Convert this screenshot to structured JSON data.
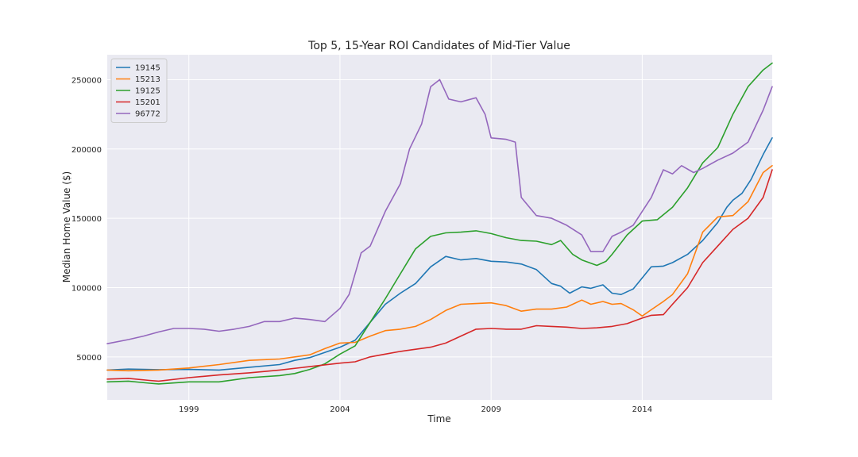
{
  "chart_data": {
    "type": "line",
    "title": "Top 5, 15-Year ROI Candidates of Mid-Tier Value",
    "xlabel": "Time",
    "ylabel": "Median Home Value ($)",
    "xlim": [
      1996.3,
      2018.3
    ],
    "ylim": [
      19000,
      268000
    ],
    "x_ticks": [
      1999,
      2004,
      2009,
      2014
    ],
    "x_tick_labels": [
      "1999",
      "2004",
      "2009",
      "2014"
    ],
    "y_ticks": [
      50000,
      100000,
      150000,
      200000,
      250000
    ],
    "y_tick_labels": [
      "50000",
      "100000",
      "150000",
      "200000",
      "250000"
    ],
    "grid": true,
    "legend_position": "top-left",
    "series": [
      {
        "name": "19145",
        "color": "#1f77b4",
        "points": [
          [
            1996.3,
            40500
          ],
          [
            1997,
            41200
          ],
          [
            1998,
            40800
          ],
          [
            1999,
            41000
          ],
          [
            2000,
            40500
          ],
          [
            2001,
            42500
          ],
          [
            2002,
            44500
          ],
          [
            2002.5,
            47500
          ],
          [
            2003,
            49500
          ],
          [
            2004,
            57000
          ],
          [
            2004.5,
            62000
          ],
          [
            2005,
            75000
          ],
          [
            2005.5,
            88000
          ],
          [
            2006,
            96000
          ],
          [
            2006.5,
            103000
          ],
          [
            2007,
            115000
          ],
          [
            2007.5,
            122500
          ],
          [
            2008,
            120000
          ],
          [
            2008.5,
            121000
          ],
          [
            2009,
            119000
          ],
          [
            2009.5,
            118500
          ],
          [
            2010,
            117000
          ],
          [
            2010.5,
            113000
          ],
          [
            2011,
            103000
          ],
          [
            2011.3,
            101000
          ],
          [
            2011.6,
            96000
          ],
          [
            2012,
            100500
          ],
          [
            2012.3,
            99500
          ],
          [
            2012.7,
            102000
          ],
          [
            2013,
            96000
          ],
          [
            2013.3,
            95000
          ],
          [
            2013.7,
            99000
          ],
          [
            2014,
            107000
          ],
          [
            2014.3,
            115000
          ],
          [
            2014.7,
            115500
          ],
          [
            2015,
            118000
          ],
          [
            2015.5,
            124000
          ],
          [
            2016,
            134000
          ],
          [
            2016.5,
            147000
          ],
          [
            2016.8,
            158000
          ],
          [
            2017,
            163000
          ],
          [
            2017.3,
            168000
          ],
          [
            2017.6,
            178000
          ],
          [
            2018,
            196000
          ],
          [
            2018.3,
            208000
          ]
        ]
      },
      {
        "name": "15213",
        "color": "#ff7f0e",
        "points": [
          [
            1996.3,
            40500
          ],
          [
            1997,
            40000
          ],
          [
            1998,
            40500
          ],
          [
            1999,
            42000
          ],
          [
            2000,
            44500
          ],
          [
            2001,
            47500
          ],
          [
            2002,
            48500
          ],
          [
            2003,
            51500
          ],
          [
            2003.5,
            56000
          ],
          [
            2004,
            60000
          ],
          [
            2004.5,
            60500
          ],
          [
            2005,
            65000
          ],
          [
            2005.5,
            69000
          ],
          [
            2006,
            70000
          ],
          [
            2006.5,
            72000
          ],
          [
            2007,
            77000
          ],
          [
            2007.5,
            83500
          ],
          [
            2008,
            88000
          ],
          [
            2008.5,
            88500
          ],
          [
            2009,
            89000
          ],
          [
            2009.5,
            87000
          ],
          [
            2010,
            83000
          ],
          [
            2010.5,
            84500
          ],
          [
            2011,
            84500
          ],
          [
            2011.5,
            86000
          ],
          [
            2012,
            91000
          ],
          [
            2012.3,
            88000
          ],
          [
            2012.7,
            90000
          ],
          [
            2013,
            88000
          ],
          [
            2013.3,
            88500
          ],
          [
            2013.7,
            84000
          ],
          [
            2014,
            79500
          ],
          [
            2014.3,
            84000
          ],
          [
            2014.7,
            90000
          ],
          [
            2015,
            95000
          ],
          [
            2015.5,
            110000
          ],
          [
            2016,
            140000
          ],
          [
            2016.5,
            151000
          ],
          [
            2017,
            152000
          ],
          [
            2017.5,
            162000
          ],
          [
            2018,
            183000
          ],
          [
            2018.3,
            188000
          ]
        ]
      },
      {
        "name": "19125",
        "color": "#2ca02c",
        "points": [
          [
            1996.3,
            32000
          ],
          [
            1997,
            32500
          ],
          [
            1997.7,
            31000
          ],
          [
            1998,
            30500
          ],
          [
            1999,
            32000
          ],
          [
            2000,
            32000
          ],
          [
            2000.5,
            33500
          ],
          [
            2001,
            35000
          ],
          [
            2002,
            36500
          ],
          [
            2002.5,
            38000
          ],
          [
            2003,
            41000
          ],
          [
            2003.5,
            45000
          ],
          [
            2004,
            52000
          ],
          [
            2004.5,
            58000
          ],
          [
            2005,
            75000
          ],
          [
            2005.5,
            92000
          ],
          [
            2006,
            110000
          ],
          [
            2006.5,
            128000
          ],
          [
            2007,
            137000
          ],
          [
            2007.5,
            139500
          ],
          [
            2008,
            140000
          ],
          [
            2008.5,
            141000
          ],
          [
            2009,
            139000
          ],
          [
            2009.5,
            136000
          ],
          [
            2010,
            134000
          ],
          [
            2010.5,
            133500
          ],
          [
            2011,
            131000
          ],
          [
            2011.3,
            134000
          ],
          [
            2011.7,
            124000
          ],
          [
            2012,
            120000
          ],
          [
            2012.5,
            116000
          ],
          [
            2012.8,
            119000
          ],
          [
            2013,
            124000
          ],
          [
            2013.5,
            138000
          ],
          [
            2014,
            148000
          ],
          [
            2014.5,
            149000
          ],
          [
            2015,
            158000
          ],
          [
            2015.5,
            172000
          ],
          [
            2016,
            190000
          ],
          [
            2016.5,
            201000
          ],
          [
            2017,
            225000
          ],
          [
            2017.5,
            245000
          ],
          [
            2018,
            257000
          ],
          [
            2018.3,
            262000
          ]
        ]
      },
      {
        "name": "15201",
        "color": "#d62728",
        "points": [
          [
            1996.3,
            34000
          ],
          [
            1997,
            34500
          ],
          [
            1997.7,
            33000
          ],
          [
            1998,
            32500
          ],
          [
            1999,
            35000
          ],
          [
            2000,
            37000
          ],
          [
            2001,
            38500
          ],
          [
            2002,
            40500
          ],
          [
            2003,
            43000
          ],
          [
            2004,
            45500
          ],
          [
            2004.5,
            46500
          ],
          [
            2005,
            50000
          ],
          [
            2005.5,
            52000
          ],
          [
            2006,
            54000
          ],
          [
            2007,
            57000
          ],
          [
            2007.5,
            60000
          ],
          [
            2008,
            65000
          ],
          [
            2008.5,
            70000
          ],
          [
            2009,
            70500
          ],
          [
            2009.5,
            70000
          ],
          [
            2010,
            70000
          ],
          [
            2010.5,
            72500
          ],
          [
            2011,
            72000
          ],
          [
            2011.5,
            71500
          ],
          [
            2012,
            70500
          ],
          [
            2012.5,
            71000
          ],
          [
            2013,
            72000
          ],
          [
            2013.5,
            74000
          ],
          [
            2014,
            78000
          ],
          [
            2014.3,
            80000
          ],
          [
            2014.7,
            80500
          ],
          [
            2015,
            88000
          ],
          [
            2015.5,
            100000
          ],
          [
            2016,
            118000
          ],
          [
            2016.5,
            130000
          ],
          [
            2017,
            142000
          ],
          [
            2017.5,
            150000
          ],
          [
            2018,
            165000
          ],
          [
            2018.3,
            185000
          ]
        ]
      },
      {
        "name": "96772",
        "color": "#9467bd",
        "points": [
          [
            1996.3,
            59500
          ],
          [
            1997,
            62500
          ],
          [
            1997.5,
            65000
          ],
          [
            1998,
            68000
          ],
          [
            1998.5,
            70500
          ],
          [
            1999,
            70500
          ],
          [
            1999.5,
            70000
          ],
          [
            2000,
            68500
          ],
          [
            2000.5,
            70000
          ],
          [
            2001,
            72000
          ],
          [
            2001.5,
            75500
          ],
          [
            2002,
            75500
          ],
          [
            2002.5,
            78000
          ],
          [
            2003,
            77000
          ],
          [
            2003.5,
            75500
          ],
          [
            2004,
            85000
          ],
          [
            2004.3,
            95000
          ],
          [
            2004.7,
            125000
          ],
          [
            2005,
            130000
          ],
          [
            2005.5,
            155000
          ],
          [
            2006,
            175000
          ],
          [
            2006.3,
            200000
          ],
          [
            2006.7,
            218000
          ],
          [
            2007,
            245000
          ],
          [
            2007.3,
            250000
          ],
          [
            2007.6,
            236000
          ],
          [
            2008,
            234000
          ],
          [
            2008.5,
            237000
          ],
          [
            2008.8,
            225000
          ],
          [
            2009,
            208000
          ],
          [
            2009.5,
            207000
          ],
          [
            2009.8,
            205000
          ],
          [
            2010,
            165000
          ],
          [
            2010.5,
            152000
          ],
          [
            2011,
            150000
          ],
          [
            2011.5,
            145000
          ],
          [
            2012,
            138000
          ],
          [
            2012.3,
            126000
          ],
          [
            2012.7,
            126000
          ],
          [
            2013,
            137000
          ],
          [
            2013.3,
            140000
          ],
          [
            2013.7,
            145000
          ],
          [
            2014,
            155000
          ],
          [
            2014.3,
            165000
          ],
          [
            2014.7,
            185000
          ],
          [
            2015,
            182000
          ],
          [
            2015.3,
            188000
          ],
          [
            2015.7,
            183000
          ],
          [
            2016,
            186000
          ],
          [
            2016.5,
            192000
          ],
          [
            2017,
            197000
          ],
          [
            2017.5,
            205000
          ],
          [
            2018,
            228000
          ],
          [
            2018.3,
            245000
          ]
        ]
      }
    ]
  }
}
